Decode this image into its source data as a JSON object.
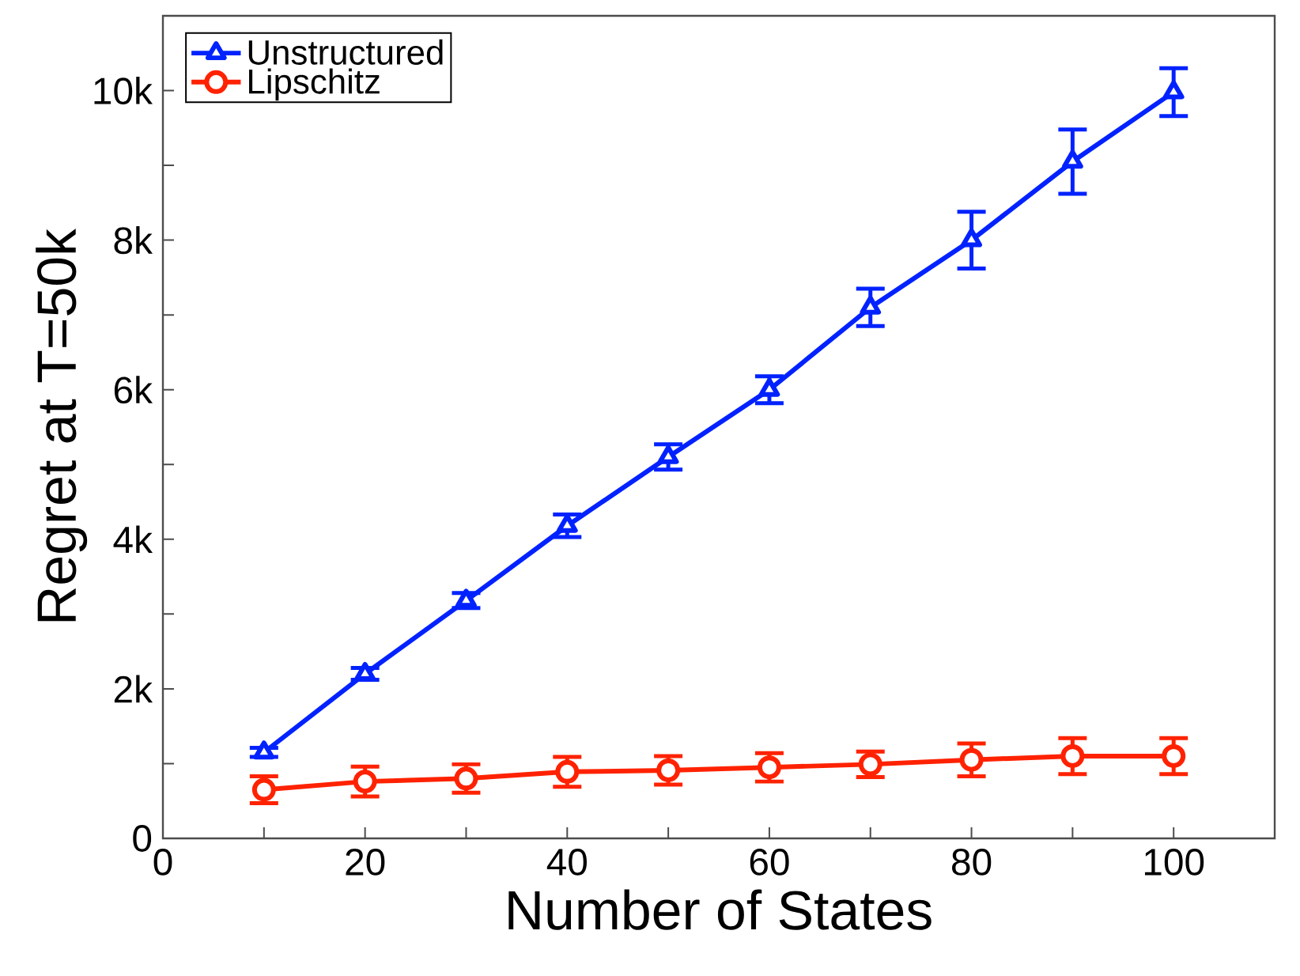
{
  "chart_data": {
    "type": "line",
    "xlabel": "Number of States",
    "ylabel": "Regret at T=50k",
    "x": [
      10,
      20,
      30,
      40,
      50,
      60,
      70,
      80,
      90,
      100
    ],
    "series": [
      {
        "name": "Unstructured",
        "color": "#0022ff",
        "marker": "triangle",
        "values": [
          1150,
          2200,
          3180,
          4180,
          5100,
          6000,
          7100,
          8000,
          9050,
          9980
        ],
        "errors": [
          60,
          80,
          100,
          150,
          170,
          180,
          250,
          380,
          430,
          320
        ]
      },
      {
        "name": "Lipschitz",
        "color": "#ff2200",
        "marker": "circle",
        "values": [
          650,
          760,
          800,
          890,
          910,
          950,
          990,
          1050,
          1100,
          1100
        ],
        "errors": [
          180,
          200,
          190,
          200,
          190,
          190,
          170,
          220,
          240,
          240
        ]
      }
    ],
    "xlim": [
      0,
      110
    ],
    "xticks": [
      0,
      {
        "value": 10,
        "label": null
      },
      20,
      {
        "value": 30,
        "label": null
      },
      40,
      {
        "value": 50,
        "label": null
      },
      60,
      {
        "value": 70,
        "label": null
      },
      80,
      {
        "value": 90,
        "label": null
      },
      100
    ],
    "ylim": [
      0,
      11000
    ],
    "yticks": [
      0,
      {
        "value": 1000,
        "label": null
      },
      {
        "value": 2000,
        "label": "2k"
      },
      {
        "value": 3000,
        "label": null
      },
      {
        "value": 4000,
        "label": "4k"
      },
      {
        "value": 5000,
        "label": null
      },
      {
        "value": 6000,
        "label": "6k"
      },
      {
        "value": 7000,
        "label": null
      },
      {
        "value": 8000,
        "label": "8k"
      },
      {
        "value": 9000,
        "label": null
      },
      {
        "value": 10000,
        "label": "10k"
      }
    ],
    "grid": false,
    "legend": "top left",
    "line_style": "solid"
  }
}
